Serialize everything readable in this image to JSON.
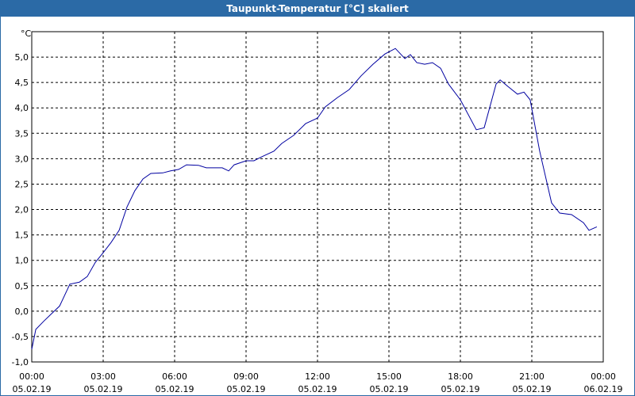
{
  "chart_data": {
    "type": "line",
    "title": "Taupunkt-Temperatur [°C] skaliert",
    "y_label": "°C",
    "xlim": [
      0,
      24
    ],
    "ylim": [
      -1,
      5.5
    ],
    "grid": true,
    "xticks": [
      {
        "value": 0,
        "label": "00:00",
        "sublabel": "05.02.19"
      },
      {
        "value": 3,
        "label": "03:00",
        "sublabel": "05.02.19"
      },
      {
        "value": 6,
        "label": "06:00",
        "sublabel": "05.02.19"
      },
      {
        "value": 9,
        "label": "09:00",
        "sublabel": "05.02.19"
      },
      {
        "value": 12,
        "label": "12:00",
        "sublabel": "05.02.19"
      },
      {
        "value": 15,
        "label": "15:00",
        "sublabel": "05.02.19"
      },
      {
        "value": 18,
        "label": "18:00",
        "sublabel": "05.02.19"
      },
      {
        "value": 21,
        "label": "21:00",
        "sublabel": "05.02.19"
      },
      {
        "value": 24,
        "label": "00:00",
        "sublabel": "06.02.19"
      }
    ],
    "yticks": [
      {
        "value": -1,
        "label": "-1,0"
      },
      {
        "value": -0.5,
        "label": "-0,5"
      },
      {
        "value": 0,
        "label": "0,0"
      },
      {
        "value": 0.5,
        "label": "0,5"
      },
      {
        "value": 1,
        "label": "1,0"
      },
      {
        "value": 1.5,
        "label": "1,5"
      },
      {
        "value": 2,
        "label": "2,0"
      },
      {
        "value": 2.5,
        "label": "2,5"
      },
      {
        "value": 3,
        "label": "3,0"
      },
      {
        "value": 3.5,
        "label": "3,5"
      },
      {
        "value": 4,
        "label": "4,0"
      },
      {
        "value": 4.5,
        "label": "4,5"
      },
      {
        "value": 5,
        "label": "5,0"
      }
    ],
    "series": [
      {
        "color": "#0000a0",
        "x": [
          0,
          0.17,
          0.5,
          0.83,
          1.17,
          1.33,
          1.6,
          2,
          2.33,
          2.67,
          3,
          3.33,
          3.67,
          4,
          4.33,
          4.67,
          5,
          5.5,
          5.83,
          6.17,
          6.5,
          7,
          7.33,
          8,
          8.27,
          8.5,
          9,
          9.33,
          9.67,
          10.17,
          10.5,
          11,
          11.5,
          12,
          12.33,
          12.83,
          13.33,
          13.83,
          14.33,
          14.83,
          15.27,
          15.67,
          15.9,
          16.17,
          16.5,
          16.83,
          17.17,
          17.5,
          18,
          18.67,
          19,
          19.5,
          19.67,
          20,
          20.4,
          20.67,
          20.93,
          21.33,
          21.83,
          22.17,
          22.67,
          23.17,
          23.4,
          23.73
        ],
        "values": [
          -0.75,
          -0.36,
          -0.2,
          -0.05,
          0.1,
          0.26,
          0.53,
          0.57,
          0.68,
          0.96,
          1.15,
          1.35,
          1.59,
          2.05,
          2.37,
          2.6,
          2.71,
          2.72,
          2.76,
          2.79,
          2.88,
          2.87,
          2.82,
          2.82,
          2.76,
          2.88,
          2.96,
          2.96,
          3.04,
          3.15,
          3.3,
          3.46,
          3.69,
          3.8,
          4.02,
          4.2,
          4.36,
          4.63,
          4.86,
          5.06,
          5.17,
          4.97,
          5.05,
          4.89,
          4.86,
          4.89,
          4.78,
          4.47,
          4.16,
          3.57,
          3.61,
          4.47,
          4.55,
          4.42,
          4.27,
          4.31,
          4.16,
          3.15,
          2.13,
          1.93,
          1.9,
          1.74,
          1.59,
          1.66
        ]
      }
    ]
  }
}
